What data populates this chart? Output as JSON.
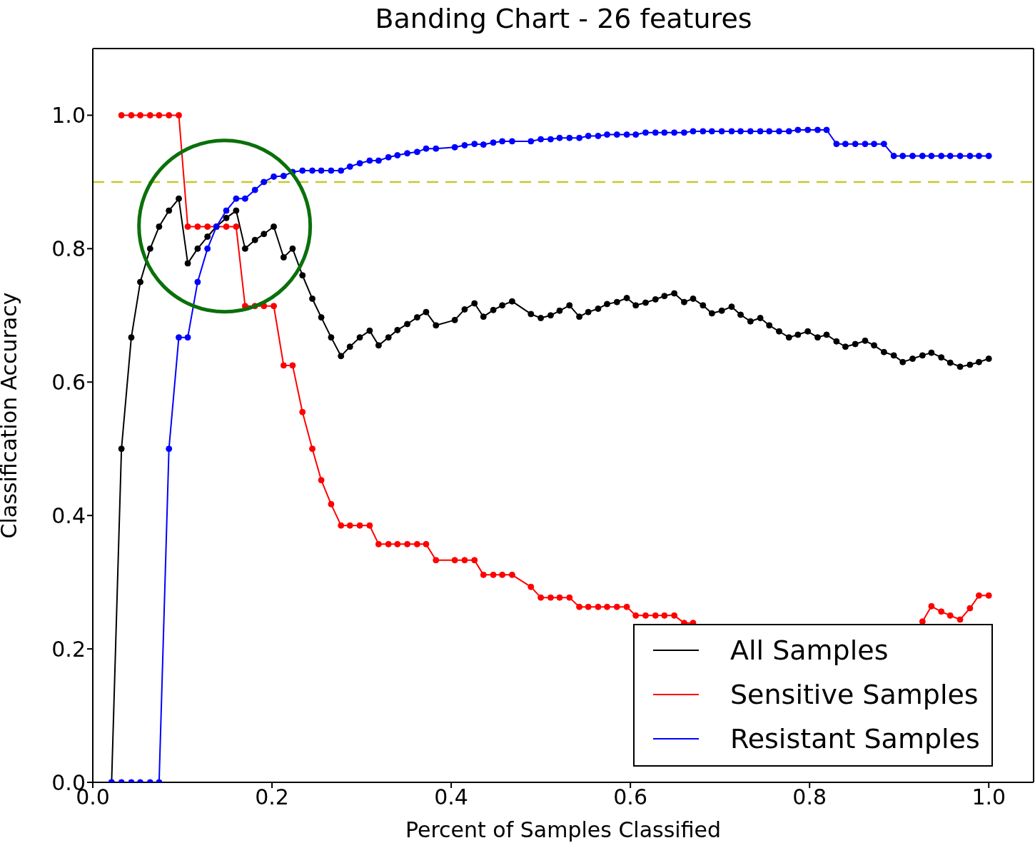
{
  "chart_data": {
    "type": "line",
    "title": "Banding Chart - 26 features",
    "xlabel": "Percent of Samples Classified",
    "ylabel": "Classification Accuracy",
    "xlim": [
      0,
      1.05
    ],
    "ylim": [
      0,
      1.1
    ],
    "xticks": [
      {
        "value": 0,
        "label": "0.0"
      },
      0.2,
      0.4,
      0.6,
      0.8,
      {
        "value": 1,
        "label": "1.0"
      }
    ],
    "yticks": [
      {
        "value": 0,
        "label": "0.0"
      },
      0.2,
      0.4,
      0.6,
      0.8,
      {
        "value": 1,
        "label": "1.0"
      }
    ],
    "legend": "bottom right",
    "marker": "circle",
    "line_style": "solid",
    "ref_lines": [
      {
        "axis": "y",
        "value": 0.9,
        "color": "#c8c832",
        "line_style": "dashed"
      }
    ],
    "series": [
      {
        "name": "All Samples",
        "color": "#000000",
        "x": [
          0.021,
          0.032,
          0.043,
          0.053,
          0.064,
          0.074,
          0.085,
          0.096,
          0.106,
          0.117,
          0.128,
          0.138,
          0.149,
          0.16,
          0.17,
          0.181,
          0.191,
          0.202,
          0.213,
          0.223,
          0.234,
          0.245,
          0.255,
          0.266,
          0.277,
          0.287,
          0.298,
          0.309,
          0.319,
          0.33,
          0.34,
          0.351,
          0.362,
          0.372,
          0.383,
          0.404,
          0.415,
          0.426,
          0.436,
          0.447,
          0.457,
          0.468,
          0.489,
          0.5,
          0.511,
          0.521,
          0.532,
          0.543,
          0.553,
          0.564,
          0.574,
          0.585,
          0.596,
          0.606,
          0.617,
          0.628,
          0.638,
          0.649,
          0.66,
          0.67,
          0.681,
          0.691,
          0.702,
          0.713,
          0.723,
          0.734,
          0.745,
          0.755,
          0.766,
          0.777,
          0.787,
          0.798,
          0.809,
          0.819,
          0.83,
          0.84,
          0.851,
          0.862,
          0.872,
          0.883,
          0.894,
          0.904,
          0.915,
          0.926,
          0.936,
          0.947,
          0.957,
          0.968,
          0.979,
          0.989,
          1.0
        ],
        "values": [
          0,
          0.5,
          0.667,
          0.75,
          0.8,
          0.833,
          0.857,
          0.875,
          0.778,
          0.8,
          0.818,
          0.833,
          0.846,
          0.857,
          0.8,
          0.813,
          0.822,
          0.833,
          0.787,
          0.8,
          0.76,
          0.725,
          0.697,
          0.667,
          0.639,
          0.653,
          0.667,
          0.677,
          0.655,
          0.667,
          0.678,
          0.687,
          0.697,
          0.705,
          0.685,
          0.693,
          0.709,
          0.718,
          0.698,
          0.708,
          0.715,
          0.721,
          0.702,
          0.696,
          0.7,
          0.707,
          0.715,
          0.698,
          0.705,
          0.71,
          0.717,
          0.72,
          0.726,
          0.715,
          0.719,
          0.724,
          0.729,
          0.733,
          0.72,
          0.725,
          0.715,
          0.703,
          0.707,
          0.713,
          0.701,
          0.691,
          0.696,
          0.685,
          0.676,
          0.667,
          0.671,
          0.676,
          0.667,
          0.671,
          0.661,
          0.653,
          0.657,
          0.662,
          0.655,
          0.645,
          0.64,
          0.63,
          0.635,
          0.64,
          0.644,
          0.637,
          0.629,
          0.623,
          0.626,
          0.63,
          0.635
        ]
      },
      {
        "name": "Sensitive Samples",
        "color": "#ff0000",
        "x": [
          0.032,
          0.043,
          0.053,
          0.064,
          0.074,
          0.085,
          0.096,
          0.106,
          0.117,
          0.128,
          0.138,
          0.149,
          0.16,
          0.17,
          0.181,
          0.191,
          0.202,
          0.213,
          0.223,
          0.234,
          0.245,
          0.255,
          0.266,
          0.277,
          0.287,
          0.298,
          0.309,
          0.319,
          0.33,
          0.34,
          0.351,
          0.362,
          0.372,
          0.383,
          0.404,
          0.415,
          0.426,
          0.436,
          0.447,
          0.457,
          0.468,
          0.489,
          0.5,
          0.511,
          0.521,
          0.532,
          0.543,
          0.553,
          0.564,
          0.574,
          0.585,
          0.596,
          0.606,
          0.617,
          0.628,
          0.638,
          0.649,
          0.66,
          0.67,
          0.681,
          0.691,
          0.702,
          0.713,
          0.723,
          0.734,
          0.745,
          0.755,
          0.766,
          0.777,
          0.787,
          0.798,
          0.809,
          0.819,
          0.83,
          0.84,
          0.851,
          0.862,
          0.872,
          0.883,
          0.894,
          0.904,
          0.915,
          0.926,
          0.936,
          0.947,
          0.957,
          0.968,
          0.979,
          0.989,
          1.0
        ],
        "values": [
          1,
          1,
          1,
          1,
          1,
          1,
          1,
          0.833,
          0.833,
          0.833,
          0.833,
          0.833,
          0.833,
          0.714,
          0.714,
          0.714,
          0.714,
          0.625,
          0.625,
          0.555,
          0.5,
          0.453,
          0.417,
          0.385,
          0.385,
          0.385,
          0.385,
          0.357,
          0.357,
          0.357,
          0.357,
          0.357,
          0.357,
          0.333,
          0.333,
          0.333,
          0.333,
          0.311,
          0.311,
          0.311,
          0.311,
          0.293,
          0.277,
          0.277,
          0.277,
          0.277,
          0.263,
          0.263,
          0.263,
          0.263,
          0.263,
          0.263,
          0.25,
          0.25,
          0.25,
          0.25,
          0.25,
          0.239,
          0.239,
          null,
          null,
          null,
          null,
          null,
          null,
          null,
          null,
          null,
          null,
          null,
          null,
          null,
          null,
          null,
          null,
          null,
          null,
          null,
          null,
          null,
          null,
          null,
          0.241,
          0.264,
          0.256,
          0.25,
          0.244,
          0.261,
          0.28,
          0.28
        ]
      },
      {
        "name": "Resistant Samples",
        "color": "#0000ff",
        "x": [
          0.021,
          0.032,
          0.043,
          0.053,
          0.064,
          0.074,
          0.085,
          0.096,
          0.106,
          0.117,
          0.128,
          0.138,
          0.149,
          0.16,
          0.17,
          0.181,
          0.191,
          0.202,
          0.213,
          0.223,
          0.234,
          0.245,
          0.255,
          0.266,
          0.277,
          0.287,
          0.298,
          0.309,
          0.319,
          0.33,
          0.34,
          0.351,
          0.362,
          0.372,
          0.383,
          0.404,
          0.415,
          0.426,
          0.436,
          0.447,
          0.457,
          0.468,
          0.489,
          0.5,
          0.511,
          0.521,
          0.532,
          0.543,
          0.553,
          0.564,
          0.574,
          0.585,
          0.596,
          0.606,
          0.617,
          0.628,
          0.638,
          0.649,
          0.66,
          0.67,
          0.681,
          0.691,
          0.702,
          0.713,
          0.723,
          0.734,
          0.745,
          0.755,
          0.766,
          0.777,
          0.787,
          0.798,
          0.809,
          0.819,
          0.83,
          0.84,
          0.851,
          0.862,
          0.872,
          0.883,
          0.894,
          0.904,
          0.915,
          0.926,
          0.936,
          0.947,
          0.957,
          0.968,
          0.979,
          0.989,
          1.0
        ],
        "values": [
          0,
          0,
          0,
          0,
          0,
          0,
          0.5,
          0.667,
          0.667,
          0.75,
          0.8,
          0.833,
          0.857,
          0.875,
          0.875,
          0.888,
          0.9,
          0.908,
          0.909,
          0.915,
          0.917,
          0.917,
          0.917,
          0.917,
          0.917,
          0.923,
          0.928,
          0.932,
          0.932,
          0.937,
          0.94,
          0.943,
          0.945,
          0.95,
          0.95,
          0.952,
          0.955,
          0.957,
          0.956,
          0.959,
          0.961,
          0.961,
          0.961,
          0.964,
          0.964,
          0.966,
          0.966,
          0.966,
          0.969,
          0.969,
          0.971,
          0.971,
          0.971,
          0.971,
          0.974,
          0.974,
          0.974,
          0.974,
          0.974,
          0.976,
          0.976,
          0.976,
          0.976,
          0.976,
          0.976,
          0.976,
          0.976,
          0.976,
          0.976,
          0.976,
          0.978,
          0.978,
          0.978,
          0.978,
          0.957,
          0.957,
          0.957,
          0.957,
          0.957,
          0.957,
          0.939,
          0.939,
          0.939,
          0.939,
          0.939,
          0.939,
          0.939,
          0.939,
          0.939,
          0.939,
          0.939
        ]
      }
    ]
  }
}
